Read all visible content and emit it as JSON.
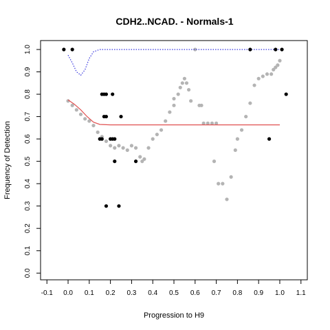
{
  "chart_data": {
    "type": "scatter",
    "title": "CDH2..NCAD. - Normals-1",
    "xlabel": "Progression to H9",
    "ylabel": "Frequency of Detection",
    "xlim": [
      -0.13,
      1.13
    ],
    "ylim": [
      -0.03,
      1.04
    ],
    "x_ticks": [
      "-0.1",
      "0.0",
      "0.1",
      "0.2",
      "0.3",
      "0.4",
      "0.5",
      "0.6",
      "0.7",
      "0.8",
      "0.9",
      "1.0",
      "1.1"
    ],
    "x_tick_values": [
      -0.1,
      0.0,
      0.1,
      0.2,
      0.3,
      0.4,
      0.5,
      0.6,
      0.7,
      0.8,
      0.9,
      1.0,
      1.1
    ],
    "y_ticks": [
      "0.0",
      "0.1",
      "0.2",
      "0.3",
      "0.4",
      "0.5",
      "0.6",
      "0.7",
      "0.8",
      "0.9",
      "1.0"
    ],
    "y_tick_values": [
      0.0,
      0.1,
      0.2,
      0.3,
      0.4,
      0.5,
      0.6,
      0.7,
      0.8,
      0.9,
      1.0
    ],
    "grid": false,
    "colors": {
      "observed": "#000000",
      "smoothed": "#b4b4b4",
      "fit": "#e05050",
      "upper": "#3333dd"
    },
    "series": [
      {
        "role": "observed",
        "style": "black points",
        "points": [
          [
            -0.02,
            1.0
          ],
          [
            0.02,
            1.0
          ],
          [
            0.15,
            0.6
          ],
          [
            0.16,
            0.6
          ],
          [
            0.16,
            0.8
          ],
          [
            0.17,
            0.8
          ],
          [
            0.18,
            0.8
          ],
          [
            0.17,
            0.7
          ],
          [
            0.18,
            0.7
          ],
          [
            0.18,
            0.3
          ],
          [
            0.2,
            0.6
          ],
          [
            0.21,
            0.6
          ],
          [
            0.21,
            0.8
          ],
          [
            0.22,
            0.6
          ],
          [
            0.22,
            0.5
          ],
          [
            0.24,
            0.3
          ],
          [
            0.25,
            0.7
          ],
          [
            0.32,
            0.5
          ],
          [
            0.86,
            1.0
          ],
          [
            0.95,
            0.6
          ],
          [
            0.98,
            1.0
          ],
          [
            1.01,
            1.0
          ],
          [
            1.03,
            0.8
          ]
        ]
      },
      {
        "role": "smoothed",
        "style": "grey dots",
        "points": [
          [
            0.0,
            0.77
          ],
          [
            0.02,
            0.75
          ],
          [
            0.04,
            0.73
          ],
          [
            0.06,
            0.71
          ],
          [
            0.08,
            0.69
          ],
          [
            0.1,
            0.68
          ],
          [
            0.12,
            0.66
          ],
          [
            0.14,
            0.63
          ],
          [
            0.16,
            0.61
          ],
          [
            0.18,
            0.59
          ],
          [
            0.2,
            0.57
          ],
          [
            0.22,
            0.56
          ],
          [
            0.24,
            0.57
          ],
          [
            0.26,
            0.56
          ],
          [
            0.28,
            0.55
          ],
          [
            0.3,
            0.57
          ],
          [
            0.32,
            0.56
          ],
          [
            0.34,
            0.52
          ],
          [
            0.35,
            0.5
          ],
          [
            0.36,
            0.51
          ],
          [
            0.38,
            0.56
          ],
          [
            0.4,
            0.6
          ],
          [
            0.42,
            0.62
          ],
          [
            0.44,
            0.64
          ],
          [
            0.46,
            0.68
          ],
          [
            0.48,
            0.72
          ],
          [
            0.5,
            0.75
          ],
          [
            0.5,
            0.78
          ],
          [
            0.52,
            0.8
          ],
          [
            0.53,
            0.83
          ],
          [
            0.54,
            0.85
          ],
          [
            0.55,
            0.87
          ],
          [
            0.56,
            0.85
          ],
          [
            0.57,
            0.82
          ],
          [
            0.58,
            0.77
          ],
          [
            0.6,
            1.0
          ],
          [
            0.62,
            0.75
          ],
          [
            0.63,
            0.75
          ],
          [
            0.64,
            0.67
          ],
          [
            0.66,
            0.67
          ],
          [
            0.68,
            0.67
          ],
          [
            0.69,
            0.5
          ],
          [
            0.7,
            0.67
          ],
          [
            0.71,
            0.4
          ],
          [
            0.73,
            0.4
          ],
          [
            0.75,
            0.33
          ],
          [
            0.77,
            0.43
          ],
          [
            0.79,
            0.55
          ],
          [
            0.8,
            0.6
          ],
          [
            0.82,
            0.64
          ],
          [
            0.84,
            0.7
          ],
          [
            0.86,
            0.76
          ],
          [
            0.88,
            0.84
          ],
          [
            0.9,
            0.87
          ],
          [
            0.92,
            0.88
          ],
          [
            0.94,
            0.89
          ],
          [
            0.96,
            0.89
          ],
          [
            0.97,
            0.91
          ],
          [
            0.98,
            0.92
          ],
          [
            0.99,
            0.93
          ],
          [
            1.0,
            0.95
          ]
        ]
      },
      {
        "role": "fit",
        "style": "red line",
        "points": [
          [
            0.0,
            0.775
          ],
          [
            0.03,
            0.755
          ],
          [
            0.06,
            0.73
          ],
          [
            0.09,
            0.7
          ],
          [
            0.12,
            0.675
          ],
          [
            0.15,
            0.665
          ],
          [
            0.2,
            0.663
          ],
          [
            0.3,
            0.663
          ],
          [
            0.5,
            0.663
          ],
          [
            0.7,
            0.663
          ],
          [
            0.9,
            0.663
          ],
          [
            1.0,
            0.663
          ]
        ]
      },
      {
        "role": "upper",
        "style": "blue dotted line",
        "points": [
          [
            0.0,
            0.975
          ],
          [
            0.02,
            0.94
          ],
          [
            0.04,
            0.9
          ],
          [
            0.06,
            0.885
          ],
          [
            0.08,
            0.91
          ],
          [
            0.1,
            0.96
          ],
          [
            0.12,
            0.99
          ],
          [
            0.15,
            1.0
          ],
          [
            0.3,
            1.0
          ],
          [
            0.5,
            1.0
          ],
          [
            0.7,
            1.0
          ],
          [
            0.9,
            1.0
          ],
          [
            1.0,
            1.0
          ]
        ]
      }
    ]
  }
}
